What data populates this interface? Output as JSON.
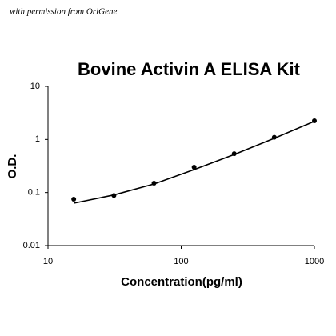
{
  "chart_data": {
    "type": "scatter",
    "note": "with permission from OriGene",
    "title": "Bovine Activin A ELISA Kit",
    "x_label": "Concentration(pg/ml)",
    "y_label": "O.D.",
    "x": [
      15.6,
      31.25,
      62.5,
      125,
      250,
      500,
      1000
    ],
    "values": [
      0.075,
      0.088,
      0.15,
      0.3,
      0.54,
      1.1,
      2.25
    ],
    "fit_x": [
      15.6,
      31.25,
      62.5,
      125,
      250,
      500,
      1000
    ],
    "fit_values": [
      0.063,
      0.09,
      0.145,
      0.27,
      0.52,
      1.05,
      2.2
    ],
    "color": "#000000",
    "log_x": true,
    "log_y": true,
    "xlim": [
      10,
      1000
    ],
    "xticks": [
      10,
      100,
      1000
    ],
    "ylim": [
      0.01,
      10
    ],
    "yticks": [
      0.01,
      0.1,
      1,
      10
    ]
  }
}
